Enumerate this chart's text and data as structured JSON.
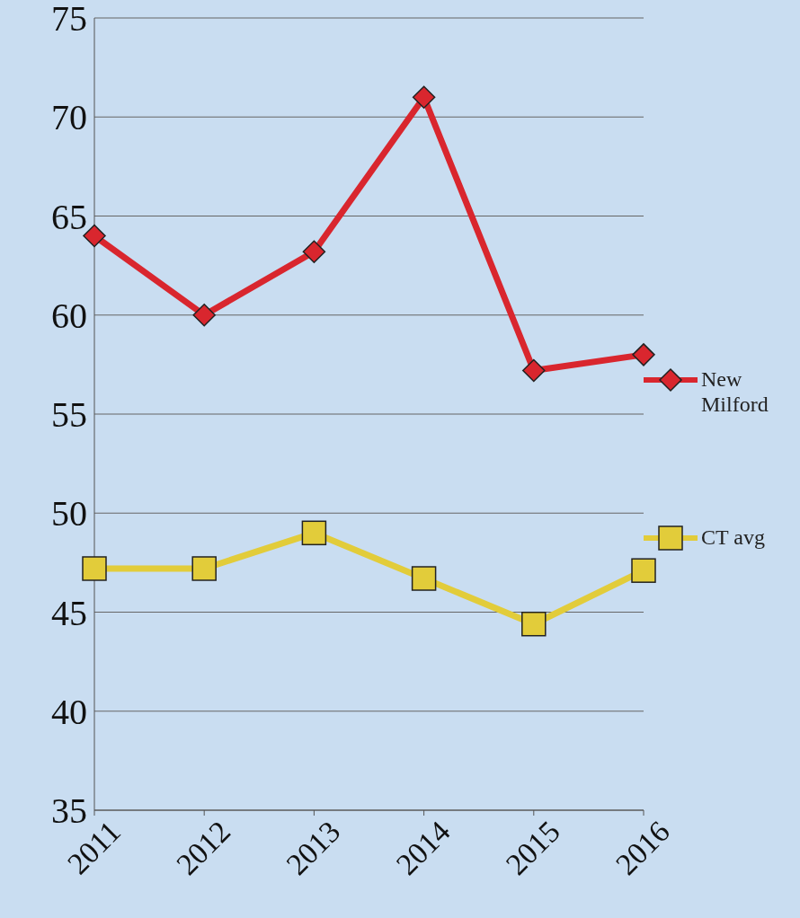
{
  "chart_data": {
    "type": "line",
    "categories": [
      "2011",
      "2012",
      "2013",
      "2014",
      "2015",
      "2016"
    ],
    "series": [
      {
        "name": "New Milford",
        "color": "#d9262e",
        "marker": "diamond",
        "values": [
          64,
          60,
          63.2,
          71,
          57.2,
          58
        ]
      },
      {
        "name": "CT avg",
        "color": "#e2cc3a",
        "marker": "square",
        "values": [
          47.2,
          47.2,
          49,
          46.7,
          44.4,
          47.1
        ]
      }
    ],
    "ylim": [
      35,
      75
    ],
    "yticks": [
      35,
      40,
      45,
      50,
      55,
      60,
      65,
      70,
      75
    ],
    "grid": "y",
    "legend": "right"
  }
}
